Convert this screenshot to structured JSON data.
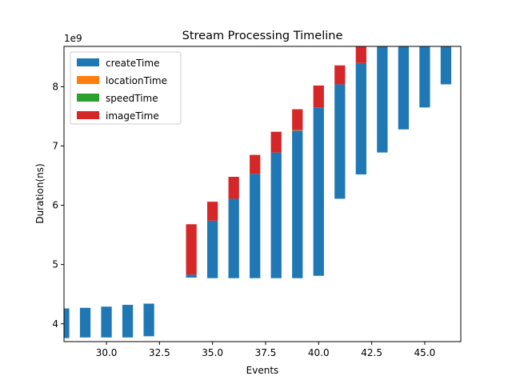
{
  "chart_data": {
    "type": "bar",
    "stacked": "floating",
    "title": "Stream Processing Timeline",
    "xlabel": "Events",
    "ylabel": "Duration(ns)",
    "y_multiplier_label": "1e9",
    "xlim": [
      28,
      46.7
    ],
    "ylim": [
      3.7,
      8.68
    ],
    "xticks": [
      30.0,
      32.5,
      35.0,
      37.5,
      40.0,
      42.5,
      45.0
    ],
    "xtick_labels": [
      "30.0",
      "32.5",
      "35.0",
      "37.5",
      "40.0",
      "42.5",
      "45.0"
    ],
    "yticks": [
      4,
      5,
      6,
      7,
      8
    ],
    "ytick_labels": [
      "4",
      "5",
      "6",
      "7",
      "8"
    ],
    "legend_position": "upper-left",
    "bar_width": 0.5,
    "series": [
      {
        "name": "createTime",
        "color": "#1f77b4"
      },
      {
        "name": "locationTime",
        "color": "#ff7f0e"
      },
      {
        "name": "speedTime",
        "color": "#2ca02c"
      },
      {
        "name": "imageTime",
        "color": "#d62728"
      }
    ],
    "events": [
      {
        "x": 28,
        "base": 3.76,
        "createTime": 0.5,
        "locationTime": 0,
        "speedTime": 0,
        "imageTime": 0
      },
      {
        "x": 29,
        "base": 3.77,
        "createTime": 0.5,
        "locationTime": 0,
        "speedTime": 0,
        "imageTime": 0
      },
      {
        "x": 30,
        "base": 3.77,
        "createTime": 0.52,
        "locationTime": 0,
        "speedTime": 0,
        "imageTime": 0
      },
      {
        "x": 31,
        "base": 3.77,
        "createTime": 0.55,
        "locationTime": 0,
        "speedTime": 0,
        "imageTime": 0
      },
      {
        "x": 32,
        "base": 3.79,
        "createTime": 0.55,
        "locationTime": 0,
        "speedTime": 0,
        "imageTime": 0
      },
      {
        "x": 34,
        "base": 4.78,
        "createTime": 0.05,
        "locationTime": 0,
        "speedTime": 0,
        "imageTime": 0.85
      },
      {
        "x": 35,
        "base": 4.77,
        "createTime": 0.97,
        "locationTime": 0,
        "speedTime": 0,
        "imageTime": 0.32
      },
      {
        "x": 36,
        "base": 4.77,
        "createTime": 1.34,
        "locationTime": 0,
        "speedTime": 0,
        "imageTime": 0.37
      },
      {
        "x": 37,
        "base": 4.77,
        "createTime": 1.76,
        "locationTime": 0,
        "speedTime": 0,
        "imageTime": 0.32
      },
      {
        "x": 38,
        "base": 4.77,
        "createTime": 2.12,
        "locationTime": 0,
        "speedTime": 0,
        "imageTime": 0.35
      },
      {
        "x": 39,
        "base": 4.77,
        "createTime": 2.49,
        "locationTime": 0.01,
        "speedTime": 0,
        "imageTime": 0.35
      },
      {
        "x": 40,
        "base": 4.81,
        "createTime": 2.84,
        "locationTime": 0,
        "speedTime": 0,
        "imageTime": 0.37
      },
      {
        "x": 41,
        "base": 6.11,
        "createTime": 1.93,
        "locationTime": 0,
        "speedTime": 0,
        "imageTime": 0.32
      },
      {
        "x": 42,
        "base": 6.52,
        "createTime": 1.88,
        "locationTime": 0,
        "speedTime": 0,
        "imageTime": 0.35
      },
      {
        "x": 43,
        "base": 6.89,
        "createTime": 1.9,
        "locationTime": 0,
        "speedTime": 0,
        "imageTime": 0
      },
      {
        "x": 44,
        "base": 7.28,
        "createTime": 1.5,
        "locationTime": 0,
        "speedTime": 0,
        "imageTime": 0
      },
      {
        "x": 45,
        "base": 7.65,
        "createTime": 1.2,
        "locationTime": 0,
        "speedTime": 0,
        "imageTime": 0
      },
      {
        "x": 46,
        "base": 8.04,
        "createTime": 0.8,
        "locationTime": 0,
        "speedTime": 0,
        "imageTime": 0
      }
    ]
  }
}
